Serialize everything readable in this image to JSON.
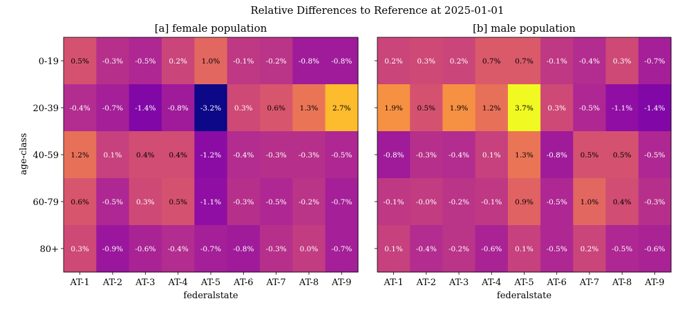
{
  "chart_data": {
    "type": "heatmap",
    "title": "Relative Differences to Reference at 2025-01-01",
    "ylabel": "age-class",
    "categories_x": [
      "AT-1",
      "AT-2",
      "AT-3",
      "AT-4",
      "AT-5",
      "AT-6",
      "AT-7",
      "AT-8",
      "AT-9"
    ],
    "categories_y": [
      "0-19",
      "20-39",
      "40-59",
      "60-79",
      "80+"
    ],
    "colormap": "plasma",
    "vlim": [
      -3.2,
      3.7
    ],
    "panels": [
      {
        "title": "[a] female population",
        "xlabel": "federalstate",
        "values": [
          [
            0.5,
            -0.3,
            -0.5,
            0.2,
            1.0,
            -0.1,
            -0.2,
            -0.8,
            -0.8
          ],
          [
            -0.4,
            -0.7,
            -1.4,
            -0.8,
            -3.2,
            0.3,
            0.6,
            1.3,
            2.7
          ],
          [
            1.2,
            0.1,
            0.4,
            0.4,
            -1.2,
            -0.4,
            -0.3,
            -0.3,
            -0.5
          ],
          [
            0.6,
            -0.5,
            0.3,
            0.5,
            -1.1,
            -0.3,
            -0.5,
            -0.2,
            -0.7
          ],
          [
            0.3,
            -0.9,
            -0.6,
            -0.4,
            -0.7,
            -0.8,
            -0.3,
            0.0,
            -0.7
          ]
        ],
        "labels": [
          [
            "0.5%",
            "-0.3%",
            "-0.5%",
            "0.2%",
            "1.0%",
            "-0.1%",
            "-0.2%",
            "-0.8%",
            "-0.8%"
          ],
          [
            "-0.4%",
            "-0.7%",
            "-1.4%",
            "-0.8%",
            "-3.2%",
            "0.3%",
            "0.6%",
            "1.3%",
            "2.7%"
          ],
          [
            "1.2%",
            "0.1%",
            "0.4%",
            "0.4%",
            "-1.2%",
            "-0.4%",
            "-0.3%",
            "-0.3%",
            "-0.5%"
          ],
          [
            "0.6%",
            "-0.5%",
            "0.3%",
            "0.5%",
            "-1.1%",
            "-0.3%",
            "-0.5%",
            "-0.2%",
            "-0.7%"
          ],
          [
            "0.3%",
            "-0.9%",
            "-0.6%",
            "-0.4%",
            "-0.7%",
            "-0.8%",
            "-0.3%",
            "0.0%",
            "-0.7%"
          ]
        ]
      },
      {
        "title": "[b] male population",
        "xlabel": "federalstate",
        "values": [
          [
            0.2,
            0.3,
            0.2,
            0.7,
            0.7,
            -0.1,
            -0.4,
            0.3,
            -0.7
          ],
          [
            1.9,
            0.5,
            1.9,
            1.2,
            3.7,
            0.3,
            -0.5,
            -1.1,
            -1.4
          ],
          [
            -0.8,
            -0.3,
            -0.4,
            0.1,
            1.3,
            -0.8,
            0.5,
            0.5,
            -0.5
          ],
          [
            -0.1,
            -0.0,
            -0.2,
            -0.1,
            0.9,
            -0.5,
            1.0,
            0.4,
            -0.3
          ],
          [
            0.1,
            -0.4,
            -0.2,
            -0.6,
            0.1,
            -0.5,
            0.2,
            -0.5,
            -0.6
          ]
        ],
        "labels": [
          [
            "0.2%",
            "0.3%",
            "0.2%",
            "0.7%",
            "0.7%",
            "-0.1%",
            "-0.4%",
            "0.3%",
            "-0.7%"
          ],
          [
            "1.9%",
            "0.5%",
            "1.9%",
            "1.2%",
            "3.7%",
            "0.3%",
            "-0.5%",
            "-1.1%",
            "-1.4%"
          ],
          [
            "-0.8%",
            "-0.3%",
            "-0.4%",
            "0.1%",
            "1.3%",
            "-0.8%",
            "0.5%",
            "0.5%",
            "-0.5%"
          ],
          [
            "-0.1%",
            "-0.0%",
            "-0.2%",
            "-0.1%",
            "0.9%",
            "-0.5%",
            "1.0%",
            "0.4%",
            "-0.3%"
          ],
          [
            "0.1%",
            "-0.4%",
            "-0.2%",
            "-0.6%",
            "0.1%",
            "-0.5%",
            "0.2%",
            "-0.5%",
            "-0.6%"
          ]
        ]
      }
    ]
  }
}
